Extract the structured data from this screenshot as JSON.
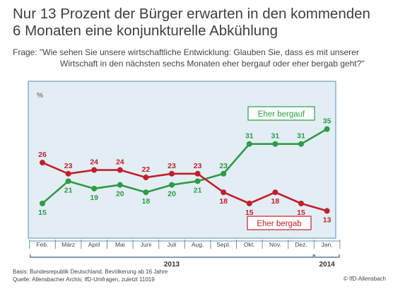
{
  "title_line1": "Nur 13 Prozent der Bürger erwarten in den kommenden",
  "title_line2": "6 Monaten eine konjunkturelle Abkühlung",
  "question_line1": "Frage: \"Wie sehen Sie unsere wirtschaftliche Entwicklung: Glauben Sie, dass es mit unserer",
  "question_line2": "Wirtschaft in den nächsten sechs Monaten eher bergauf oder eher bergab geht?\"",
  "footer_line1": "Basis: Bundesrepublik Deutschland, Bevölkerung ab 16 Jahre",
  "footer_line2": "Quelle: Allensbacher Archiv, IfD-Umfragen, zuletzt 11019",
  "credit": "© IfD-Allensbach",
  "colors": {
    "panel_bg": "#e3edf4",
    "panel_border": "#5b8bb0",
    "green": "#2e9b45",
    "red": "#c0202e"
  },
  "chart_data": {
    "type": "line",
    "ylabel": "%",
    "categories": [
      "Feb.",
      "März",
      "April",
      "Mai",
      "Juni",
      "Juli",
      "Aug.",
      "Sept.",
      "Okt.",
      "Nov.",
      "Dez.",
      "Jan."
    ],
    "years": [
      {
        "label": "2013",
        "from": 0,
        "to": 10
      },
      {
        "label": "2014",
        "from": 11,
        "to": 11
      }
    ],
    "ylim": [
      10,
      38
    ],
    "series": [
      {
        "name": "Eher bergauf",
        "color": "#2e9b45",
        "values": [
          15,
          21,
          19,
          20,
          18,
          20,
          21,
          23,
          31,
          31,
          31,
          35
        ],
        "label_position": [
          "below",
          "below",
          "below",
          "below",
          "below",
          "below",
          "below",
          "above",
          "above",
          "above",
          "above",
          "above"
        ]
      },
      {
        "name": "Eher bergab",
        "color": "#c0202e",
        "values": [
          26,
          23,
          24,
          24,
          22,
          23,
          23,
          18,
          15,
          18,
          15,
          13
        ],
        "label_position": [
          "above",
          "above",
          "above",
          "above",
          "above",
          "above",
          "above",
          "below",
          "below",
          "below",
          "below",
          "below"
        ]
      }
    ]
  }
}
